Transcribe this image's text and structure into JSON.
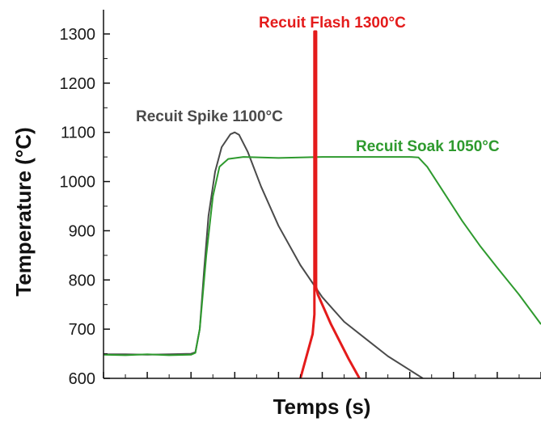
{
  "chart_data": {
    "type": "line",
    "title": "",
    "xlabel": "Temps (s)",
    "ylabel": "Temperature  (°C)",
    "ylim": [
      600,
      1330
    ],
    "y_ticks": [
      "600",
      "700",
      "800",
      "900",
      "1000",
      "1100",
      "1200",
      "1300"
    ],
    "xlim": [
      0,
      10
    ],
    "x_tick_labels_shown": false,
    "grid": false,
    "legend": "none",
    "series": [
      {
        "name": "Recuit Spike 1100°C",
        "color": "#4a4a4a",
        "points": [
          [
            0,
            649
          ],
          [
            0.5,
            649
          ],
          [
            1.0,
            648
          ],
          [
            1.5,
            649
          ],
          [
            2.0,
            650
          ],
          [
            2.1,
            653
          ],
          [
            2.2,
            700
          ],
          [
            2.3,
            820
          ],
          [
            2.4,
            930
          ],
          [
            2.55,
            1020
          ],
          [
            2.7,
            1070
          ],
          [
            2.9,
            1096
          ],
          [
            3.0,
            1100
          ],
          [
            3.1,
            1095
          ],
          [
            3.3,
            1060
          ],
          [
            3.6,
            990
          ],
          [
            4.0,
            910
          ],
          [
            4.5,
            830
          ],
          [
            5.0,
            765
          ],
          [
            5.5,
            715
          ],
          [
            6.0,
            680
          ],
          [
            6.5,
            645
          ],
          [
            7.0,
            617
          ],
          [
            7.3,
            600
          ]
        ]
      },
      {
        "name": "Recuit Soak 1050°C",
        "color": "#2e9a2e",
        "points": [
          [
            0,
            648
          ],
          [
            0.5,
            647
          ],
          [
            1.0,
            649
          ],
          [
            1.5,
            647
          ],
          [
            2.0,
            648
          ],
          [
            2.1,
            652
          ],
          [
            2.2,
            700
          ],
          [
            2.35,
            850
          ],
          [
            2.5,
            970
          ],
          [
            2.65,
            1030
          ],
          [
            2.85,
            1046
          ],
          [
            3.2,
            1050
          ],
          [
            4.0,
            1048
          ],
          [
            5.0,
            1050
          ],
          [
            6.0,
            1050
          ],
          [
            7.0,
            1050
          ],
          [
            7.2,
            1049
          ],
          [
            7.4,
            1030
          ],
          [
            7.8,
            975
          ],
          [
            8.2,
            920
          ],
          [
            8.6,
            870
          ],
          [
            9.0,
            825
          ],
          [
            9.5,
            770
          ],
          [
            10.0,
            710
          ]
        ]
      },
      {
        "name": "Recuit Flash 1300°C",
        "color": "#e41b1b",
        "points": [
          [
            4.5,
            600
          ],
          [
            4.78,
            690
          ],
          [
            4.82,
            730
          ],
          [
            4.82,
            1305
          ],
          [
            4.86,
            1305
          ],
          [
            4.86,
            785
          ],
          [
            4.9,
            770
          ],
          [
            5.2,
            710
          ],
          [
            5.6,
            640
          ],
          [
            5.85,
            600
          ]
        ]
      }
    ],
    "annotations": [
      {
        "text": "Recuit Spike 1100°C",
        "color": "#4a4a4a"
      },
      {
        "text": "Recuit Soak 1050°C",
        "color": "#2e9a2e"
      },
      {
        "text": "Recuit Flash 1300°C",
        "color": "#e41b1b"
      }
    ]
  }
}
